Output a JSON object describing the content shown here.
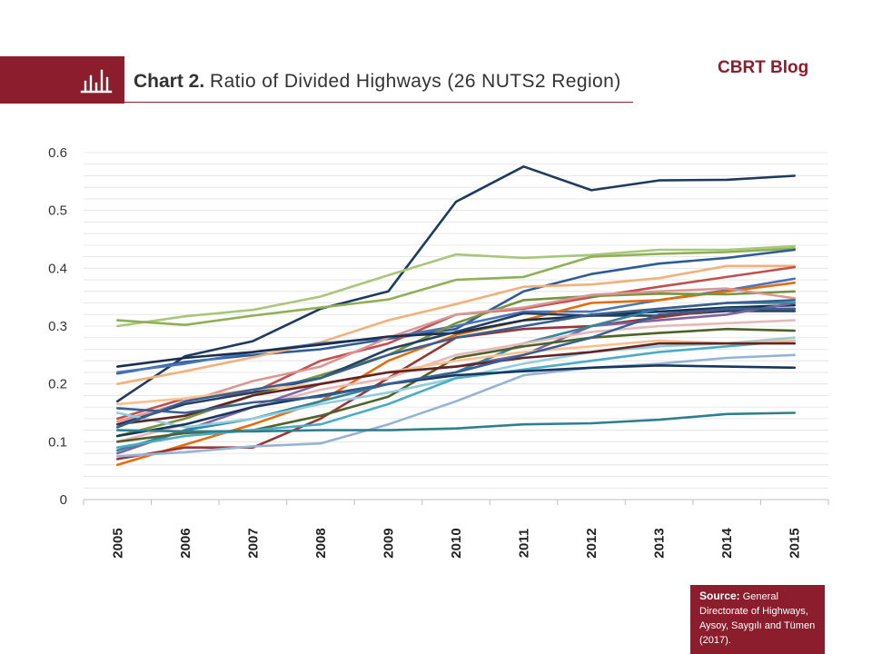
{
  "header": {
    "title_bold": "Chart 2.",
    "title_rest": "Ratio of Divided Highways (26 NUTS2 Region)",
    "brand": "CBRT Blog"
  },
  "source": {
    "label": "Source:",
    "text": "General Directorate of Highways, Aysoy, Saygılı and Tümen (2017)."
  },
  "colors": {
    "accent": "#8b1d2c",
    "text": "#333333",
    "grid": "#e0e0e0"
  },
  "icons": {
    "banner": "bar-chart-icon"
  },
  "chart_data": {
    "type": "line",
    "x": [
      "2005",
      "2006",
      "2007",
      "2008",
      "2009",
      "2010",
      "2011",
      "2012",
      "2013",
      "2014",
      "2015"
    ],
    "ylim": [
      0,
      0.6
    ],
    "yticks": [
      "0",
      "0.1",
      "0.2",
      "0.3",
      "0.4",
      "0.5",
      "0.6"
    ],
    "grid": true,
    "legend": "none",
    "title": "",
    "xlabel": "",
    "ylabel": "",
    "series": [
      {
        "color": "#1f3a5f",
        "values": [
          0.17,
          0.248,
          0.274,
          0.33,
          0.36,
          0.515,
          0.576,
          0.535,
          0.552,
          0.553,
          0.56
        ]
      },
      {
        "color": "#a9c77b",
        "values": [
          0.3,
          0.317,
          0.328,
          0.351,
          0.388,
          0.424,
          0.418,
          0.423,
          0.432,
          0.432,
          0.438
        ]
      },
      {
        "color": "#8fb054",
        "values": [
          0.31,
          0.302,
          0.318,
          0.332,
          0.346,
          0.38,
          0.385,
          0.42,
          0.425,
          0.428,
          0.434
        ]
      },
      {
        "color": "#2e5c99",
        "values": [
          0.218,
          0.238,
          0.25,
          0.26,
          0.278,
          0.295,
          0.36,
          0.39,
          0.408,
          0.418,
          0.432
        ]
      },
      {
        "color": "#f2b07a",
        "values": [
          0.2,
          0.222,
          0.246,
          0.272,
          0.31,
          0.338,
          0.368,
          0.372,
          0.383,
          0.404,
          0.404
        ]
      },
      {
        "color": "#c0504d",
        "values": [
          0.14,
          0.175,
          0.185,
          0.24,
          0.27,
          0.32,
          0.33,
          0.35,
          0.368,
          0.385,
          0.402
        ]
      },
      {
        "color": "#4a74b8",
        "values": [
          0.22,
          0.235,
          0.255,
          0.27,
          0.28,
          0.3,
          0.325,
          0.325,
          0.345,
          0.362,
          0.382
        ]
      },
      {
        "color": "#e46c0a",
        "values": [
          0.06,
          0.095,
          0.13,
          0.17,
          0.24,
          0.285,
          0.31,
          0.34,
          0.345,
          0.36,
          0.375
        ]
      },
      {
        "color": "#77933c",
        "values": [
          0.11,
          0.14,
          0.18,
          0.215,
          0.25,
          0.305,
          0.345,
          0.352,
          0.356,
          0.355,
          0.36
        ]
      },
      {
        "color": "#d99694",
        "values": [
          0.135,
          0.168,
          0.205,
          0.23,
          0.28,
          0.32,
          0.332,
          0.354,
          0.36,
          0.365,
          0.348
        ]
      },
      {
        "color": "#1a2f4e",
        "values": [
          0.23,
          0.245,
          0.255,
          0.268,
          0.282,
          0.288,
          0.31,
          0.318,
          0.325,
          0.332,
          0.336
        ]
      },
      {
        "color": "#254061",
        "values": [
          0.13,
          0.165,
          0.185,
          0.21,
          0.26,
          0.29,
          0.322,
          0.318,
          0.318,
          0.326,
          0.326
        ]
      },
      {
        "color": "#953735",
        "values": [
          0.07,
          0.09,
          0.09,
          0.14,
          0.21,
          0.28,
          0.295,
          0.3,
          0.315,
          0.33,
          0.33
        ]
      },
      {
        "color": "#8064a2",
        "values": [
          0.08,
          0.12,
          0.16,
          0.2,
          0.22,
          0.23,
          0.25,
          0.3,
          0.31,
          0.32,
          0.34
        ]
      },
      {
        "color": "#31859c",
        "values": [
          0.085,
          0.12,
          0.14,
          0.17,
          0.2,
          0.22,
          0.27,
          0.3,
          0.33,
          0.34,
          0.34
        ]
      },
      {
        "color": "#e6b9b8",
        "values": [
          0.1,
          0.13,
          0.16,
          0.19,
          0.21,
          0.25,
          0.27,
          0.29,
          0.3,
          0.305,
          0.31
        ]
      },
      {
        "color": "#4f6228",
        "values": [
          0.1,
          0.115,
          0.12,
          0.145,
          0.178,
          0.245,
          0.265,
          0.28,
          0.288,
          0.295,
          0.292
        ]
      },
      {
        "color": "#93cddd",
        "values": [
          0.15,
          0.125,
          0.14,
          0.165,
          0.185,
          0.21,
          0.235,
          0.255,
          0.265,
          0.27,
          0.28
        ]
      },
      {
        "color": "#4bacc6",
        "values": [
          0.09,
          0.11,
          0.12,
          0.13,
          0.165,
          0.21,
          0.225,
          0.24,
          0.255,
          0.265,
          0.275
        ]
      },
      {
        "color": "#fac090",
        "values": [
          0.165,
          0.175,
          0.19,
          0.2,
          0.22,
          0.24,
          0.255,
          0.265,
          0.275,
          0.27,
          0.275
        ]
      },
      {
        "color": "#632523",
        "values": [
          0.13,
          0.145,
          0.18,
          0.2,
          0.22,
          0.23,
          0.245,
          0.255,
          0.27,
          0.27,
          0.27
        ]
      },
      {
        "color": "#95b3d7",
        "values": [
          0.075,
          0.082,
          0.092,
          0.097,
          0.13,
          0.17,
          0.215,
          0.228,
          0.235,
          0.245,
          0.25
        ]
      },
      {
        "color": "#17375e",
        "values": [
          0.11,
          0.13,
          0.16,
          0.18,
          0.2,
          0.215,
          0.222,
          0.228,
          0.232,
          0.23,
          0.228
        ]
      },
      {
        "color": "#366092",
        "values": [
          0.158,
          0.15,
          0.168,
          0.178,
          0.2,
          0.22,
          0.25,
          0.28,
          0.32,
          0.33,
          0.33
        ]
      },
      {
        "color": "#376092",
        "values": [
          0.125,
          0.17,
          0.19,
          0.21,
          0.25,
          0.28,
          0.3,
          0.32,
          0.33,
          0.34,
          0.345
        ]
      },
      {
        "color": "#2f7f8f",
        "values": [
          0.12,
          0.118,
          0.118,
          0.12,
          0.12,
          0.123,
          0.13,
          0.132,
          0.138,
          0.148,
          0.15
        ]
      }
    ]
  }
}
